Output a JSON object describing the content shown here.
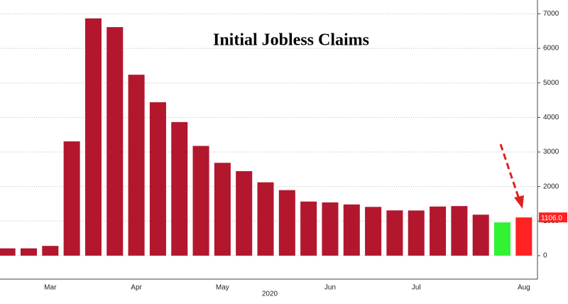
{
  "chart_data": {
    "type": "bar",
    "title": "Initial Jobless Claims",
    "categories": [
      null,
      null,
      "Mar",
      null,
      null,
      null,
      "Apr",
      null,
      null,
      null,
      "May",
      null,
      null,
      null,
      null,
      "Jun",
      null,
      null,
      null,
      "Jul",
      null,
      null,
      null,
      null,
      "Aug"
    ],
    "x_label": "2020",
    "values": [
      211,
      211,
      282,
      3307,
      6867,
      6615,
      5237,
      4442,
      3867,
      3176,
      2687,
      2446,
      2123,
      1897,
      1566,
      1540,
      1482,
      1411,
      1310,
      1307,
      1422,
      1435,
      1186,
      963,
      1106
    ],
    "value_labels": [
      null,
      null,
      null,
      null,
      null,
      null,
      null,
      null,
      null,
      null,
      null,
      null,
      null,
      null,
      null,
      null,
      null,
      null,
      null,
      null,
      null,
      null,
      null,
      null,
      "1106.0"
    ],
    "colors": [
      "#b3172e",
      "#b3172e",
      "#b3172e",
      "#b3172e",
      "#b3172e",
      "#b3172e",
      "#b3172e",
      "#b3172e",
      "#b3172e",
      "#b3172e",
      "#b3172e",
      "#b3172e",
      "#b3172e",
      "#b3172e",
      "#b3172e",
      "#b3172e",
      "#b3172e",
      "#b3172e",
      "#b3172e",
      "#b3172e",
      "#b3172e",
      "#b3172e",
      "#b3172e",
      "#33f233",
      "#ff2222"
    ],
    "ylim": [
      -680,
      7400
    ],
    "yticks": [
      0,
      1000,
      2000,
      3000,
      4000,
      5000,
      6000,
      7000
    ],
    "grid": true,
    "y_axis_side": "right"
  }
}
